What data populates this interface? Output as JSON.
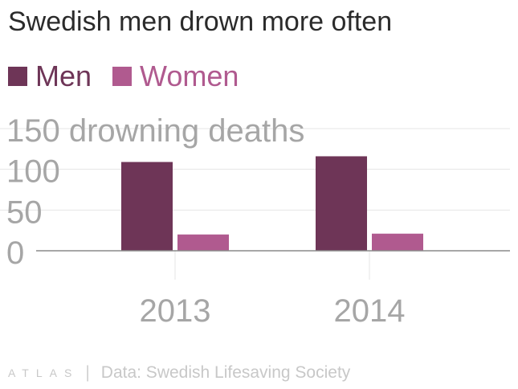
{
  "title": "Swedish men drown more often",
  "source": "Data: Swedish Lifesaving Society",
  "logo": "ATLAS",
  "separator": "|",
  "colors": {
    "men": "#6e3557",
    "women": "#b05a8f",
    "grid": "#e5e5e5",
    "axis": "#8a8a8a",
    "tick": "#a6a6a6"
  },
  "chart_data": {
    "type": "bar",
    "title": "Swedish men drown more often",
    "categories": [
      "2013",
      "2014"
    ],
    "series": [
      {
        "name": "Men",
        "values": [
          109,
          116
        ]
      },
      {
        "name": "Women",
        "values": [
          20,
          21
        ]
      }
    ],
    "ylabel_inline": "150 drowning deaths",
    "yticks": [
      {
        "value": 150,
        "label": "150 drowning deaths"
      },
      {
        "value": 100,
        "label": "100"
      },
      {
        "value": 50,
        "label": "50"
      },
      {
        "value": 0,
        "label": "0"
      }
    ],
    "ylim": [
      0,
      150
    ],
    "grid": true,
    "legend": "top-left"
  }
}
